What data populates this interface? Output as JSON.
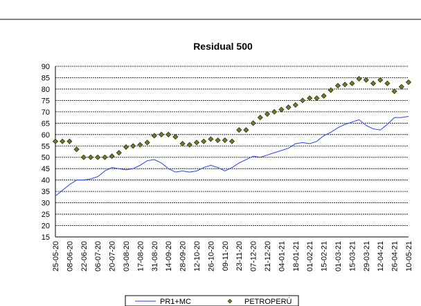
{
  "chart_data": {
    "type": "line",
    "title": "Residual 500",
    "categories": [
      "25-05-20",
      null,
      "08-06-20",
      null,
      "22-06-20",
      null,
      "06-07-20",
      null,
      "20-07-20",
      null,
      "03-08-20",
      null,
      "17-08-20",
      null,
      "31-08-20",
      null,
      "14-09-20",
      null,
      "28-09-20",
      null,
      "12-10-20",
      null,
      "26-10-20",
      null,
      "09-11-20",
      null,
      "23-11-20",
      null,
      "07-12-20",
      null,
      "21-12-20",
      null,
      "04-01-21",
      null,
      "18-01-21",
      null,
      "01-02-21",
      null,
      "15-02-21",
      null,
      "01-03-21",
      null,
      "15-03-21",
      null,
      "29-03-21",
      null,
      "12-04-21",
      null,
      "26-04-21",
      null,
      "10-05-21"
    ],
    "series": [
      {
        "name": "PR1+MC",
        "color": "#1f3fff",
        "style": "line",
        "values": [
          33,
          35.5,
          38,
          40,
          40,
          40.5,
          41.5,
          44,
          45.5,
          45,
          44.5,
          45,
          46.5,
          48.5,
          49,
          47.5,
          45,
          43.5,
          44,
          43.5,
          44,
          45.5,
          46.5,
          45.5,
          44,
          45.5,
          47.5,
          49,
          50.5,
          50,
          51,
          52,
          53,
          54,
          56,
          56.5,
          56,
          57,
          59.5,
          61,
          63,
          64.5,
          65.5,
          66.5,
          64,
          62.5,
          62,
          64.5,
          67.5,
          67.5,
          68
        ]
      },
      {
        "name": "PETROPERÚ",
        "color": "#6b7d2a",
        "style": "marker",
        "values": [
          57,
          57,
          57,
          53.5,
          50,
          50,
          50,
          50,
          50.5,
          52,
          54.5,
          55,
          55.5,
          56.5,
          59.5,
          60,
          60,
          59,
          56,
          55.5,
          56.5,
          57,
          58,
          57.5,
          57.5,
          57,
          62,
          62,
          65,
          67.5,
          69,
          70,
          71,
          72,
          73,
          75,
          76,
          76,
          77,
          79.5,
          81.5,
          82,
          82.5,
          84.5,
          84,
          82.5,
          84,
          82.5,
          79,
          81,
          83
        ]
      }
    ],
    "ylim": [
      15,
      90
    ],
    "yticks": [
      15,
      20,
      25,
      30,
      35,
      40,
      45,
      50,
      55,
      60,
      65,
      70,
      75,
      80,
      85,
      90
    ],
    "grid": true,
    "legend": "bottom"
  }
}
